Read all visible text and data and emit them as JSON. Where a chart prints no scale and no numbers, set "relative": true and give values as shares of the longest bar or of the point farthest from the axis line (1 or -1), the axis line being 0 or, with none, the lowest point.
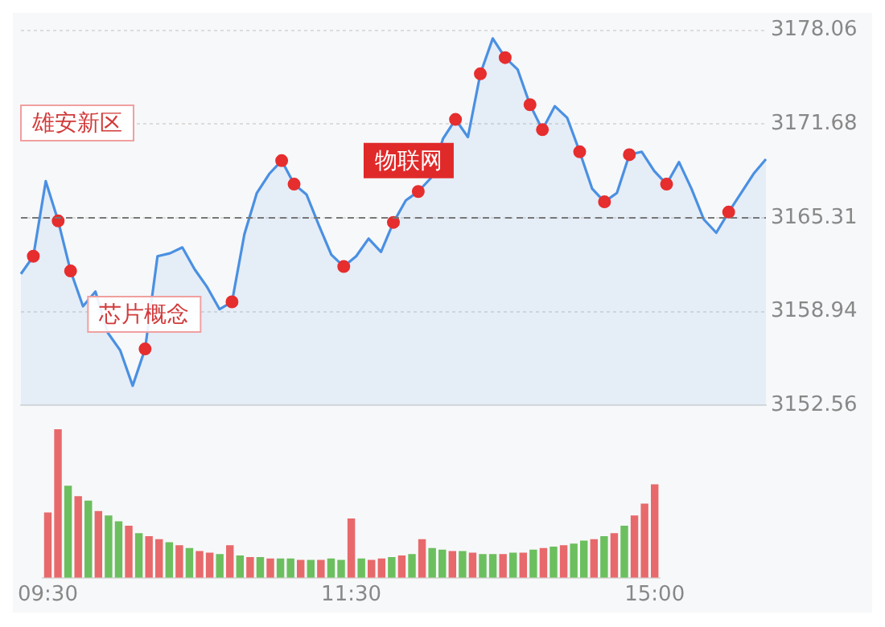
{
  "chart_data": [
    {
      "type": "area",
      "categories": [
        null,
        null,
        null,
        null,
        null,
        null,
        null,
        null,
        null,
        null,
        null,
        null,
        null,
        null,
        null,
        null,
        null,
        null,
        null,
        null,
        null,
        null,
        null,
        null,
        null,
        null,
        null,
        null,
        null,
        null,
        null,
        null,
        null,
        null,
        null,
        null,
        null,
        null,
        null,
        null,
        null,
        null,
        null,
        null,
        null,
        null,
        null,
        null,
        null,
        null,
        null,
        null,
        null,
        null,
        null,
        null,
        null,
        null,
        null,
        null,
        null
      ],
      "ylim": [
        3152.56,
        3178.06
      ],
      "yticks": [
        3152.56,
        3158.94,
        3165.31,
        3171.68,
        3178.06
      ],
      "grid": "y",
      "legend": false,
      "tick_labels": "y",
      "ref_lines": [
        {
          "axis": "y",
          "value": 3165.31,
          "color": "#777777",
          "line_style": "dashed"
        }
      ],
      "annotations": [
        "雄安新区",
        "芯片概念",
        "物联网"
      ],
      "series": [
        {
          "type": "area",
          "color": "#4a90e2",
          "values": [
            3161.5,
            3162.7,
            3167.8,
            3165.1,
            3161.7,
            3159.3,
            3160.3,
            3157.5,
            3156.3,
            3153.9,
            3156.4,
            3162.7,
            3162.9,
            3163.3,
            3161.8,
            3160.6,
            3159.1,
            3159.6,
            3164.2,
            3167.0,
            3168.3,
            3169.2,
            3167.6,
            3166.9,
            3164.8,
            3162.8,
            3162.0,
            3162.7,
            3163.9,
            3163.0,
            3165.0,
            3166.5,
            3167.1,
            3168.0,
            3170.7,
            3172.0,
            3170.8,
            3175.1,
            3177.5,
            3176.2,
            3175.4,
            3173.0,
            3171.3,
            3172.9,
            3172.1,
            3169.8,
            3167.3,
            3166.4,
            3167.0,
            3169.6,
            3169.8,
            3168.5,
            3167.6,
            3169.1,
            3167.3,
            3165.2,
            3164.3,
            3165.7,
            3167.0,
            3168.3,
            3169.3
          ]
        },
        {
          "type": "scatter",
          "color": "#e62e2e",
          "marker": "circle",
          "values": [
            null,
            3162.7,
            null,
            3165.1,
            3161.7,
            null,
            null,
            null,
            null,
            null,
            3156.4,
            null,
            null,
            null,
            null,
            null,
            null,
            3159.6,
            null,
            null,
            null,
            3169.2,
            3167.6,
            null,
            null,
            null,
            3162.0,
            null,
            null,
            null,
            3165.0,
            null,
            3167.1,
            null,
            null,
            3172.0,
            null,
            3175.1,
            null,
            3176.2,
            null,
            3173.0,
            3171.3,
            null,
            null,
            3169.8,
            null,
            3166.4,
            null,
            3169.6,
            null,
            null,
            3167.6,
            null,
            null,
            null,
            null,
            3165.7,
            null,
            null,
            null
          ]
        }
      ]
    },
    {
      "type": "bar",
      "relative": true,
      "categories": [
        "09:30",
        null,
        null,
        null,
        null,
        null,
        null,
        null,
        null,
        null,
        null,
        null,
        null,
        null,
        null,
        null,
        null,
        null,
        null,
        null,
        null,
        null,
        null,
        null,
        null,
        null,
        null,
        null,
        null,
        null,
        "11:30",
        null,
        null,
        null,
        null,
        null,
        null,
        null,
        null,
        null,
        null,
        null,
        null,
        null,
        null,
        null,
        null,
        null,
        null,
        null,
        null,
        null,
        null,
        null,
        null,
        null,
        null,
        null,
        null,
        null,
        "15:00"
      ],
      "legend": false,
      "tick_labels": "x",
      "values": [
        0.44,
        1.0,
        0.62,
        0.55,
        0.52,
        0.45,
        0.42,
        0.38,
        0.35,
        0.3,
        0.28,
        0.26,
        0.24,
        0.22,
        0.2,
        0.18,
        0.17,
        0.16,
        0.22,
        0.15,
        0.14,
        0.14,
        0.13,
        0.13,
        0.13,
        0.12,
        0.12,
        0.12,
        0.13,
        0.12,
        0.4,
        0.13,
        0.12,
        0.13,
        0.14,
        0.15,
        0.16,
        0.26,
        0.2,
        0.19,
        0.18,
        0.18,
        0.17,
        0.16,
        0.16,
        0.16,
        0.17,
        0.17,
        0.19,
        0.2,
        0.21,
        0.22,
        0.23,
        0.25,
        0.26,
        0.28,
        0.3,
        0.35,
        0.42,
        0.5,
        0.63
      ],
      "colors": [
        "#e8696b",
        "#e8696b",
        "#6cbf5e",
        "#e8696b",
        "#6cbf5e",
        "#e8696b",
        "#6cbf5e",
        "#6cbf5e",
        "#e8696b",
        "#6cbf5e",
        "#e8696b",
        "#e8696b",
        "#6cbf5e",
        "#e8696b",
        "#6cbf5e",
        "#e8696b",
        "#e8696b",
        "#6cbf5e",
        "#e8696b",
        "#6cbf5e",
        "#e8696b",
        "#6cbf5e",
        "#e8696b",
        "#6cbf5e",
        "#6cbf5e",
        "#e8696b",
        "#6cbf5e",
        "#e8696b",
        "#6cbf5e",
        "#6cbf5e",
        "#e8696b",
        "#6cbf5e",
        "#e8696b",
        "#e8696b",
        "#6cbf5e",
        "#e8696b",
        "#6cbf5e",
        "#e8696b",
        "#6cbf5e",
        "#6cbf5e",
        "#e8696b",
        "#6cbf5e",
        "#e8696b",
        "#6cbf5e",
        "#6cbf5e",
        "#e8696b",
        "#6cbf5e",
        "#e8696b",
        "#6cbf5e",
        "#e8696b",
        "#6cbf5e",
        "#e8696b",
        "#6cbf5e",
        "#6cbf5e",
        "#e8696b",
        "#6cbf5e",
        "#e8696b",
        "#6cbf5e",
        "#e8696b",
        "#e8696b",
        "#e8696b"
      ]
    }
  ]
}
